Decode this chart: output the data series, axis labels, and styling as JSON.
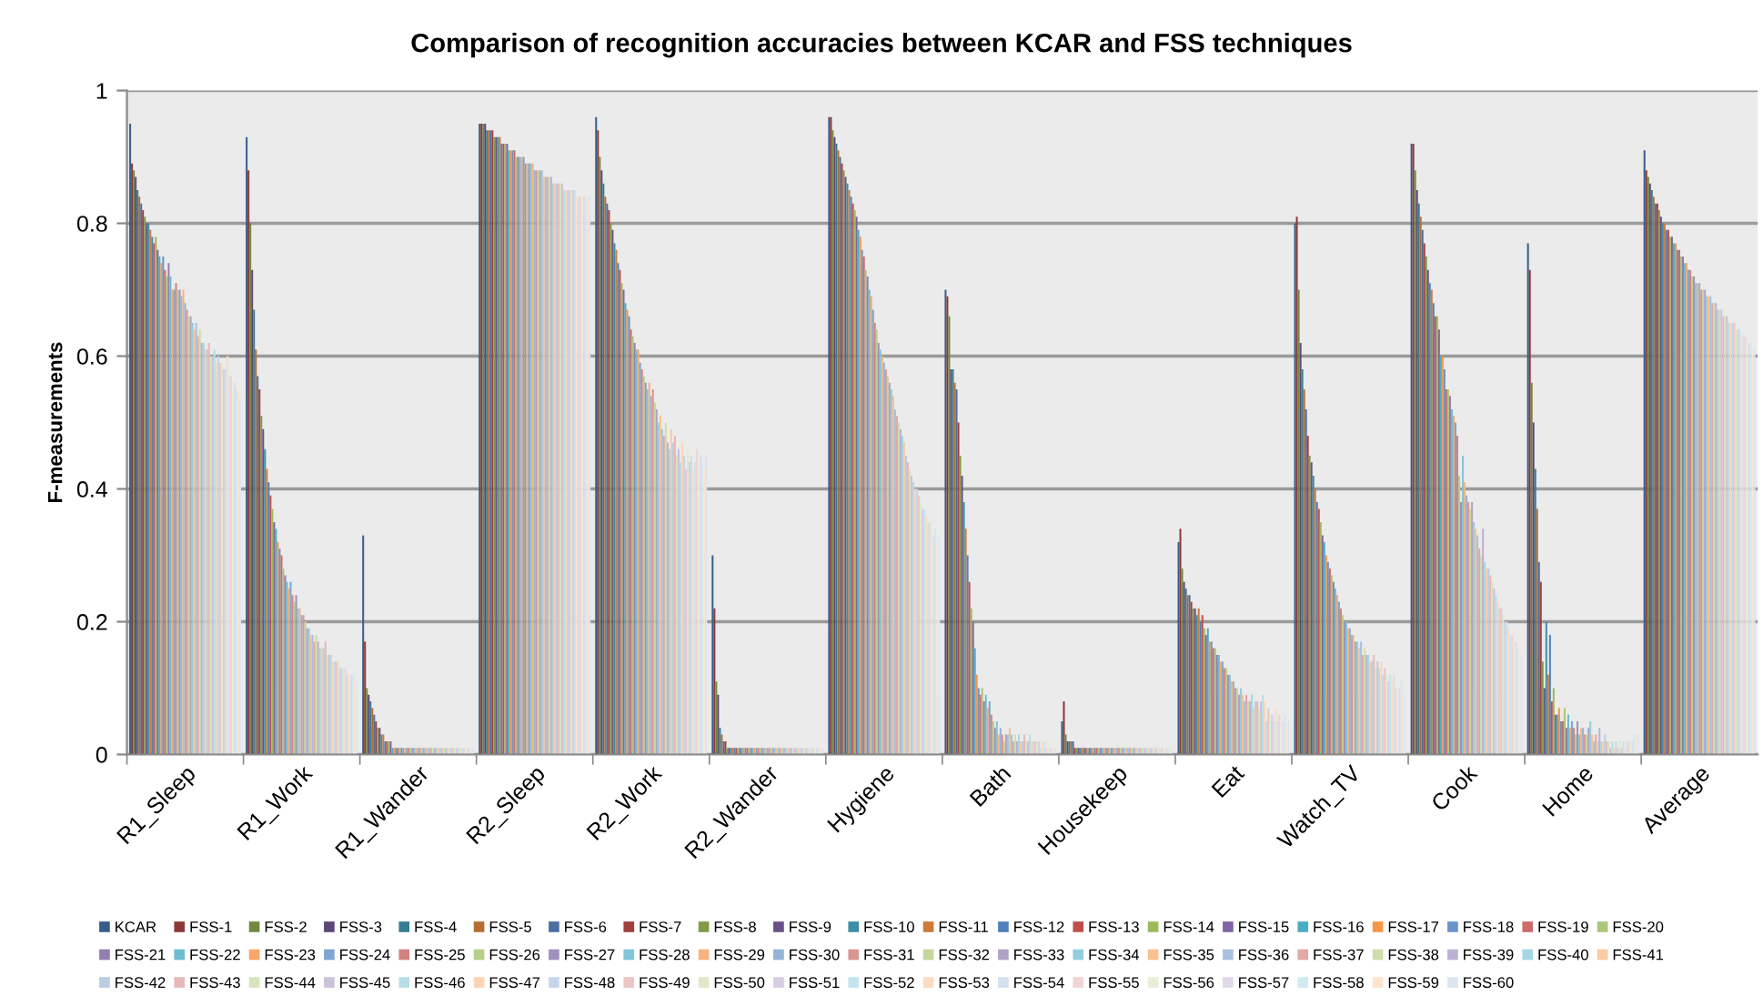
{
  "chart_data": {
    "type": "bar",
    "title": "Comparison of recognition accuracies between KCAR and FSS techniques",
    "ylabel": "F-measurements",
    "categories": [
      "R1_Sleep",
      "R1_Work",
      "R1_Wander",
      "R2_Sleep",
      "R2_Work",
      "R2_Wander",
      "Hygiene",
      "Bath",
      "Housekeep",
      "Eat",
      "Watch_TV",
      "Cook",
      "Home",
      "Average"
    ],
    "ylim": [
      0,
      1
    ],
    "yticks": [
      0,
      0.2,
      0.4,
      0.6,
      0.8,
      1
    ],
    "grid": "y",
    "legend": "bottom",
    "series": [
      {
        "name": "KCAR",
        "color": "#385d8a",
        "values": [
          0.95,
          0.93,
          0.33,
          0.95,
          0.96,
          0.3,
          0.96,
          0.7,
          0.05,
          0.32,
          0.8,
          0.92,
          0.77,
          0.91
        ]
      },
      {
        "name": "FSS-1",
        "color": "#8c3836",
        "values": [
          0.89,
          0.88,
          0.17,
          0.95,
          0.94,
          0.22,
          0.96,
          0.69,
          0.08,
          0.34,
          0.81,
          0.92,
          0.73,
          0.88
        ]
      },
      {
        "name": "FSS-2",
        "color": "#71893f",
        "values": [
          0.88,
          0.8,
          0.1,
          0.95,
          0.9,
          0.11,
          0.94,
          0.66,
          0.03,
          0.28,
          0.7,
          0.88,
          0.56,
          0.87
        ]
      },
      {
        "name": "FSS-3",
        "color": "#5c4776",
        "values": [
          0.87,
          0.73,
          0.09,
          0.95,
          0.88,
          0.09,
          0.93,
          0.58,
          0.02,
          0.26,
          0.62,
          0.85,
          0.5,
          0.86
        ]
      },
      {
        "name": "FSS-4",
        "color": "#357d91",
        "values": [
          0.85,
          0.67,
          0.08,
          0.94,
          0.86,
          0.04,
          0.92,
          0.58,
          0.02,
          0.25,
          0.58,
          0.83,
          0.43,
          0.85
        ]
      },
      {
        "name": "FSS-5",
        "color": "#b66d31",
        "values": [
          0.84,
          0.61,
          0.07,
          0.94,
          0.84,
          0.03,
          0.91,
          0.56,
          0.02,
          0.24,
          0.55,
          0.81,
          0.37,
          0.84
        ]
      },
      {
        "name": "FSS-6",
        "color": "#4a6fa0",
        "values": [
          0.83,
          0.57,
          0.06,
          0.94,
          0.83,
          0.02,
          0.9,
          0.55,
          0.02,
          0.24,
          0.52,
          0.79,
          0.29,
          0.83
        ]
      },
      {
        "name": "FSS-7",
        "color": "#a03f3c",
        "values": [
          0.82,
          0.55,
          0.05,
          0.94,
          0.82,
          0.02,
          0.89,
          0.5,
          0.01,
          0.23,
          0.48,
          0.77,
          0.26,
          0.83
        ]
      },
      {
        "name": "FSS-8",
        "color": "#819c48",
        "values": [
          0.81,
          0.51,
          0.04,
          0.93,
          0.8,
          0.01,
          0.88,
          0.45,
          0.01,
          0.22,
          0.45,
          0.75,
          0.14,
          0.82
        ]
      },
      {
        "name": "FSS-9",
        "color": "#695187",
        "values": [
          0.8,
          0.49,
          0.04,
          0.93,
          0.79,
          0.01,
          0.87,
          0.42,
          0.01,
          0.22,
          0.44,
          0.73,
          0.1,
          0.81
        ]
      },
      {
        "name": "FSS-10",
        "color": "#3d8ea5",
        "values": [
          0.8,
          0.46,
          0.03,
          0.93,
          0.77,
          0.01,
          0.86,
          0.38,
          0.01,
          0.21,
          0.42,
          0.71,
          0.2,
          0.8
        ]
      },
      {
        "name": "FSS-11",
        "color": "#cf7b38",
        "values": [
          0.79,
          0.43,
          0.03,
          0.93,
          0.76,
          0.01,
          0.85,
          0.34,
          0.01,
          0.22,
          0.4,
          0.7,
          0.12,
          0.8
        ]
      },
      {
        "name": "FSS-12",
        "color": "#4f81bd",
        "values": [
          0.78,
          0.41,
          0.02,
          0.92,
          0.74,
          0.01,
          0.84,
          0.3,
          0.01,
          0.2,
          0.38,
          0.68,
          0.18,
          0.79
        ]
      },
      {
        "name": "FSS-13",
        "color": "#c0504d",
        "values": [
          0.77,
          0.39,
          0.02,
          0.92,
          0.73,
          0.01,
          0.83,
          0.26,
          0.01,
          0.21,
          0.37,
          0.66,
          0.08,
          0.79
        ]
      },
      {
        "name": "FSS-14",
        "color": "#9bbb59",
        "values": [
          0.78,
          0.37,
          0.02,
          0.92,
          0.71,
          0.01,
          0.82,
          0.22,
          0.01,
          0.19,
          0.35,
          0.66,
          0.1,
          0.78
        ]
      },
      {
        "name": "FSS-15",
        "color": "#8064a2",
        "values": [
          0.76,
          0.35,
          0.02,
          0.92,
          0.7,
          0.01,
          0.81,
          0.2,
          0.01,
          0.18,
          0.33,
          0.64,
          0.06,
          0.78
        ]
      },
      {
        "name": "FSS-16",
        "color": "#4bacc6",
        "values": [
          0.75,
          0.34,
          0.01,
          0.91,
          0.68,
          0.01,
          0.79,
          0.16,
          0.01,
          0.19,
          0.32,
          0.6,
          0.06,
          0.77
        ]
      },
      {
        "name": "FSS-17",
        "color": "#f79646",
        "values": [
          0.74,
          0.32,
          0.01,
          0.91,
          0.67,
          0.01,
          0.78,
          0.12,
          0.01,
          0.17,
          0.3,
          0.6,
          0.07,
          0.77
        ]
      },
      {
        "name": "FSS-18",
        "color": "#6a94c8",
        "values": [
          0.75,
          0.31,
          0.01,
          0.91,
          0.66,
          0.01,
          0.76,
          0.1,
          0.01,
          0.17,
          0.29,
          0.58,
          0.05,
          0.76
        ]
      },
      {
        "name": "FSS-19",
        "color": "#cc6b68",
        "values": [
          0.73,
          0.3,
          0.01,
          0.91,
          0.64,
          0.01,
          0.75,
          0.09,
          0.01,
          0.16,
          0.28,
          0.55,
          0.05,
          0.76
        ]
      },
      {
        "name": "FSS-20",
        "color": "#aac67a",
        "values": [
          0.72,
          0.28,
          0.01,
          0.9,
          0.63,
          0.01,
          0.73,
          0.1,
          0.01,
          0.16,
          0.27,
          0.55,
          0.07,
          0.75
        ]
      },
      {
        "name": "FSS-21",
        "color": "#937db2",
        "values": [
          0.74,
          0.27,
          0.01,
          0.9,
          0.62,
          0.01,
          0.72,
          0.08,
          0.01,
          0.15,
          0.26,
          0.54,
          0.04,
          0.75
        ]
      },
      {
        "name": "FSS-22",
        "color": "#6bbcd1",
        "values": [
          0.72,
          0.26,
          0.01,
          0.9,
          0.61,
          0.01,
          0.7,
          0.09,
          0.01,
          0.15,
          0.25,
          0.52,
          0.06,
          0.74
        ]
      },
      {
        "name": "FSS-23",
        "color": "#f8a76a",
        "values": [
          0.7,
          0.25,
          0.01,
          0.9,
          0.61,
          0.01,
          0.69,
          0.07,
          0.01,
          0.14,
          0.24,
          0.51,
          0.04,
          0.74
        ]
      },
      {
        "name": "FSS-24",
        "color": "#7fa4d0",
        "values": [
          0.7,
          0.26,
          0.01,
          0.9,
          0.59,
          0.01,
          0.67,
          0.08,
          0.01,
          0.14,
          0.23,
          0.5,
          0.05,
          0.73
        ]
      },
      {
        "name": "FSS-25",
        "color": "#d48280",
        "values": [
          0.71,
          0.24,
          0.01,
          0.89,
          0.58,
          0.01,
          0.65,
          0.06,
          0.01,
          0.13,
          0.22,
          0.48,
          0.04,
          0.73
        ]
      },
      {
        "name": "FSS-26",
        "color": "#b6cf8b",
        "values": [
          0.7,
          0.23,
          0.01,
          0.89,
          0.57,
          0.01,
          0.64,
          0.05,
          0.01,
          0.13,
          0.21,
          0.42,
          0.03,
          0.72
        ]
      },
      {
        "name": "FSS-27",
        "color": "#a190bd",
        "values": [
          0.7,
          0.24,
          0.01,
          0.89,
          0.56,
          0.01,
          0.62,
          0.04,
          0.01,
          0.12,
          0.2,
          0.38,
          0.05,
          0.72
        ]
      },
      {
        "name": "FSS-28",
        "color": "#80c6d8",
        "values": [
          0.69,
          0.22,
          0.01,
          0.89,
          0.55,
          0.01,
          0.61,
          0.05,
          0.01,
          0.12,
          0.2,
          0.45,
          0.03,
          0.71
        ]
      },
      {
        "name": "FSS-29",
        "color": "#f9b27e",
        "values": [
          0.7,
          0.22,
          0.01,
          0.89,
          0.56,
          0.01,
          0.6,
          0.03,
          0.01,
          0.11,
          0.19,
          0.41,
          0.04,
          0.71
        ]
      },
      {
        "name": "FSS-30",
        "color": "#95b3d7",
        "values": [
          0.68,
          0.21,
          0.01,
          0.88,
          0.54,
          0.01,
          0.59,
          0.04,
          0.01,
          0.11,
          0.19,
          0.39,
          0.04,
          0.71
        ]
      },
      {
        "name": "FSS-31",
        "color": "#da9694",
        "values": [
          0.67,
          0.21,
          0.01,
          0.88,
          0.55,
          0.01,
          0.58,
          0.03,
          0.01,
          0.1,
          0.18,
          0.38,
          0.03,
          0.7
        ]
      },
      {
        "name": "FSS-32",
        "color": "#c3d69b",
        "values": [
          0.66,
          0.2,
          0.01,
          0.88,
          0.53,
          0.01,
          0.57,
          0.02,
          0.01,
          0.1,
          0.18,
          0.37,
          0.03,
          0.7
        ]
      },
      {
        "name": "FSS-33",
        "color": "#b2a1c7",
        "values": [
          0.66,
          0.19,
          0.01,
          0.88,
          0.52,
          0.01,
          0.56,
          0.03,
          0.01,
          0.09,
          0.17,
          0.38,
          0.04,
          0.7
        ]
      },
      {
        "name": "FSS-34",
        "color": "#93cddd",
        "values": [
          0.65,
          0.19,
          0.01,
          0.88,
          0.5,
          0.01,
          0.55,
          0.03,
          0.01,
          0.1,
          0.17,
          0.35,
          0.05,
          0.69
        ]
      },
      {
        "name": "FSS-35",
        "color": "#fac090",
        "values": [
          0.64,
          0.18,
          0.01,
          0.87,
          0.51,
          0.01,
          0.54,
          0.04,
          0.01,
          0.09,
          0.16,
          0.34,
          0.03,
          0.69
        ]
      },
      {
        "name": "FSS-36",
        "color": "#a7c0de",
        "values": [
          0.65,
          0.18,
          0.01,
          0.87,
          0.49,
          0.01,
          0.52,
          0.03,
          0.01,
          0.08,
          0.17,
          0.33,
          0.02,
          0.69
        ]
      },
      {
        "name": "FSS-37",
        "color": "#e0a8a6",
        "values": [
          0.63,
          0.17,
          0.01,
          0.87,
          0.48,
          0.01,
          0.51,
          0.02,
          0.01,
          0.09,
          0.15,
          0.31,
          0.03,
          0.68
        ]
      },
      {
        "name": "FSS-38",
        "color": "#cddeac",
        "values": [
          0.64,
          0.18,
          0.01,
          0.87,
          0.5,
          0.01,
          0.5,
          0.03,
          0.01,
          0.08,
          0.16,
          0.3,
          0.02,
          0.68
        ]
      },
      {
        "name": "FSS-39",
        "color": "#bdb0d0",
        "values": [
          0.62,
          0.17,
          0.01,
          0.87,
          0.47,
          0.01,
          0.49,
          0.02,
          0.01,
          0.08,
          0.15,
          0.34,
          0.04,
          0.68
        ]
      },
      {
        "name": "FSS-40",
        "color": "#a5d6e3",
        "values": [
          0.62,
          0.16,
          0.01,
          0.86,
          0.46,
          0.01,
          0.48,
          0.03,
          0.01,
          0.09,
          0.15,
          0.29,
          0.02,
          0.67
        ]
      },
      {
        "name": "FSS-41",
        "color": "#fbcba4",
        "values": [
          0.61,
          0.16,
          0.01,
          0.86,
          0.49,
          0.01,
          0.47,
          0.02,
          0.01,
          0.07,
          0.14,
          0.28,
          0.02,
          0.67
        ]
      },
      {
        "name": "FSS-42",
        "color": "#b9cde5",
        "values": [
          0.61,
          0.16,
          0.01,
          0.86,
          0.47,
          0.01,
          0.45,
          0.02,
          0.01,
          0.08,
          0.14,
          0.28,
          0.03,
          0.67
        ]
      },
      {
        "name": "FSS-43",
        "color": "#e6b9b8",
        "values": [
          0.62,
          0.17,
          0.01,
          0.86,
          0.48,
          0.01,
          0.44,
          0.03,
          0.01,
          0.08,
          0.15,
          0.27,
          0.02,
          0.66
        ]
      },
      {
        "name": "FSS-44",
        "color": "#d7e4bd",
        "values": [
          0.6,
          0.15,
          0.01,
          0.86,
          0.45,
          0.01,
          0.43,
          0.02,
          0.01,
          0.07,
          0.13,
          0.26,
          0.02,
          0.66
        ]
      },
      {
        "name": "FSS-45",
        "color": "#ccc1da",
        "values": [
          0.6,
          0.15,
          0.01,
          0.86,
          0.46,
          0.01,
          0.42,
          0.02,
          0.01,
          0.08,
          0.14,
          0.25,
          0.01,
          0.66
        ]
      },
      {
        "name": "FSS-46",
        "color": "#b7dee8",
        "values": [
          0.61,
          0.15,
          0.01,
          0.85,
          0.44,
          0.01,
          0.41,
          0.03,
          0.01,
          0.09,
          0.13,
          0.24,
          0.02,
          0.65
        ]
      },
      {
        "name": "FSS-47",
        "color": "#fcd5b5",
        "values": [
          0.59,
          0.14,
          0.01,
          0.85,
          0.47,
          0.01,
          0.4,
          0.02,
          0.01,
          0.08,
          0.14,
          0.23,
          0.01,
          0.65
        ]
      },
      {
        "name": "FSS-48",
        "color": "#c6d6ea",
        "values": [
          0.6,
          0.14,
          0.01,
          0.85,
          0.45,
          0.01,
          0.4,
          0.02,
          0.01,
          0.05,
          0.12,
          0.22,
          0.02,
          0.65
        ]
      },
      {
        "name": "FSS-49",
        "color": "#ebc6c5",
        "values": [
          0.59,
          0.14,
          0.01,
          0.85,
          0.43,
          0.01,
          0.39,
          0.02,
          0.01,
          0.07,
          0.13,
          0.22,
          0.01,
          0.65
        ]
      },
      {
        "name": "FSS-50",
        "color": "#dfe9ca",
        "values": [
          0.59,
          0.14,
          0.01,
          0.85,
          0.46,
          0.01,
          0.38,
          0.02,
          0.01,
          0.06,
          0.12,
          0.21,
          0.02,
          0.64
        ]
      },
      {
        "name": "FSS-51",
        "color": "#d6cde2",
        "values": [
          0.58,
          0.13,
          0.01,
          0.85,
          0.44,
          0.01,
          0.37,
          0.02,
          0.01,
          0.06,
          0.11,
          0.2,
          0.01,
          0.64
        ]
      },
      {
        "name": "FSS-52",
        "color": "#c4e4ed",
        "values": [
          0.58,
          0.13,
          0.01,
          0.85,
          0.45,
          0.01,
          0.37,
          0.01,
          0.01,
          0.05,
          0.12,
          0.2,
          0.02,
          0.64
        ]
      },
      {
        "name": "FSS-53",
        "color": "#fcddc2",
        "values": [
          0.6,
          0.13,
          0.01,
          0.84,
          0.43,
          0.01,
          0.36,
          0.02,
          0.01,
          0.07,
          0.11,
          0.19,
          0.01,
          0.63
        ]
      },
      {
        "name": "FSS-54",
        "color": "#d3e0ef",
        "values": [
          0.57,
          0.13,
          0.01,
          0.84,
          0.44,
          0.01,
          0.35,
          0.02,
          0.01,
          0.05,
          0.12,
          0.18,
          0.02,
          0.63
        ]
      },
      {
        "name": "FSS-55",
        "color": "#f0d3d2",
        "values": [
          0.57,
          0.12,
          0.01,
          0.84,
          0.46,
          0.01,
          0.35,
          0.01,
          0.01,
          0.06,
          0.1,
          0.18,
          0.02,
          0.63
        ]
      },
      {
        "name": "FSS-56",
        "color": "#e7efd7",
        "values": [
          0.56,
          0.12,
          0.01,
          0.84,
          0.42,
          0.01,
          0.34,
          0.02,
          0.01,
          0.04,
          0.11,
          0.17,
          0.02,
          0.62
        ]
      },
      {
        "name": "FSS-57",
        "color": "#e0d9ea",
        "values": [
          0.56,
          0.12,
          0.01,
          0.84,
          0.45,
          0.01,
          0.33,
          0.01,
          0.01,
          0.05,
          0.1,
          0.17,
          0.02,
          0.62
        ]
      },
      {
        "name": "FSS-58",
        "color": "#d1eaf1",
        "values": [
          0.55,
          0.12,
          0.01,
          0.84,
          0.44,
          0.01,
          0.34,
          0.01,
          0.01,
          0.06,
          0.11,
          0.16,
          0.03,
          0.62
        ]
      },
      {
        "name": "FSS-59",
        "color": "#fde4ce",
        "values": [
          0.55,
          0.11,
          0.01,
          0.84,
          0.43,
          0.01,
          0.32,
          0.01,
          0.01,
          0.04,
          0.09,
          0.16,
          0.03,
          0.61
        ]
      },
      {
        "name": "FSS-60",
        "color": "#dce6f2",
        "values": [
          0.54,
          0.11,
          0.01,
          0.84,
          0.45,
          0.01,
          0.33,
          0.01,
          0.01,
          0.05,
          0.09,
          0.15,
          0.03,
          0.61
        ]
      }
    ]
  }
}
